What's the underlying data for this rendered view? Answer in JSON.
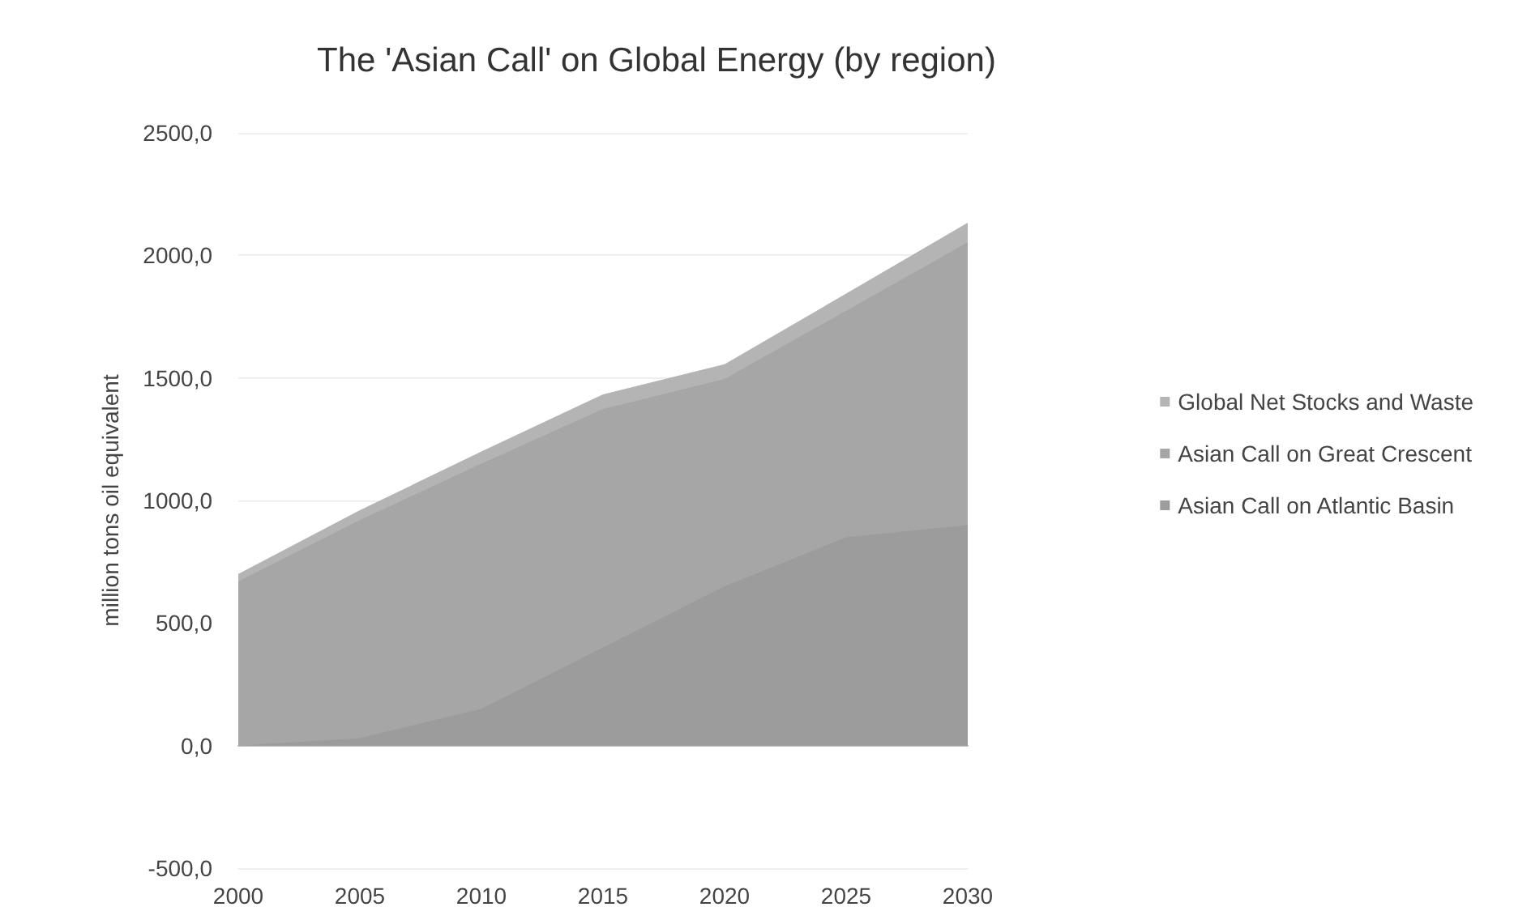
{
  "chart_data": {
    "type": "area",
    "stacked": true,
    "title": "The 'Asian Call' on Global Energy (by region)",
    "ylabel": "million tons oil equivalent",
    "x": [
      2000,
      2005,
      2010,
      2015,
      2020,
      2025,
      2030
    ],
    "xlim": [
      2000,
      2030
    ],
    "xticks": [
      2000,
      2005,
      2010,
      2015,
      2020,
      2025,
      2030
    ],
    "ylim": [
      -500,
      2500
    ],
    "yticks": [
      {
        "value": -500,
        "label": "-500,0"
      },
      {
        "value": 0,
        "label": "0,0"
      },
      {
        "value": 500,
        "label": "500,0"
      },
      {
        "value": 1000,
        "label": "1000,0"
      },
      {
        "value": 1500,
        "label": "1500,0"
      },
      {
        "value": 2000,
        "label": "2000,0"
      },
      {
        "value": 2500,
        "label": "2500,0"
      }
    ],
    "grid": "y",
    "legend": "right",
    "series": [
      {
        "name": "Asian Call on Atlantic Basin",
        "color": "#9c9c9c",
        "values": [
          0,
          30,
          150,
          400,
          650,
          850,
          900
        ]
      },
      {
        "name": "Asian Call on Great Crescent",
        "color": "#a6a6a6",
        "values": [
          670,
          890,
          1000,
          973,
          846,
          924,
          1153
        ]
      },
      {
        "name": "Global Net Stocks and Waste",
        "color": "#b4b4b4",
        "values": [
          30,
          40,
          50,
          60,
          60,
          70,
          80
        ]
      }
    ]
  }
}
